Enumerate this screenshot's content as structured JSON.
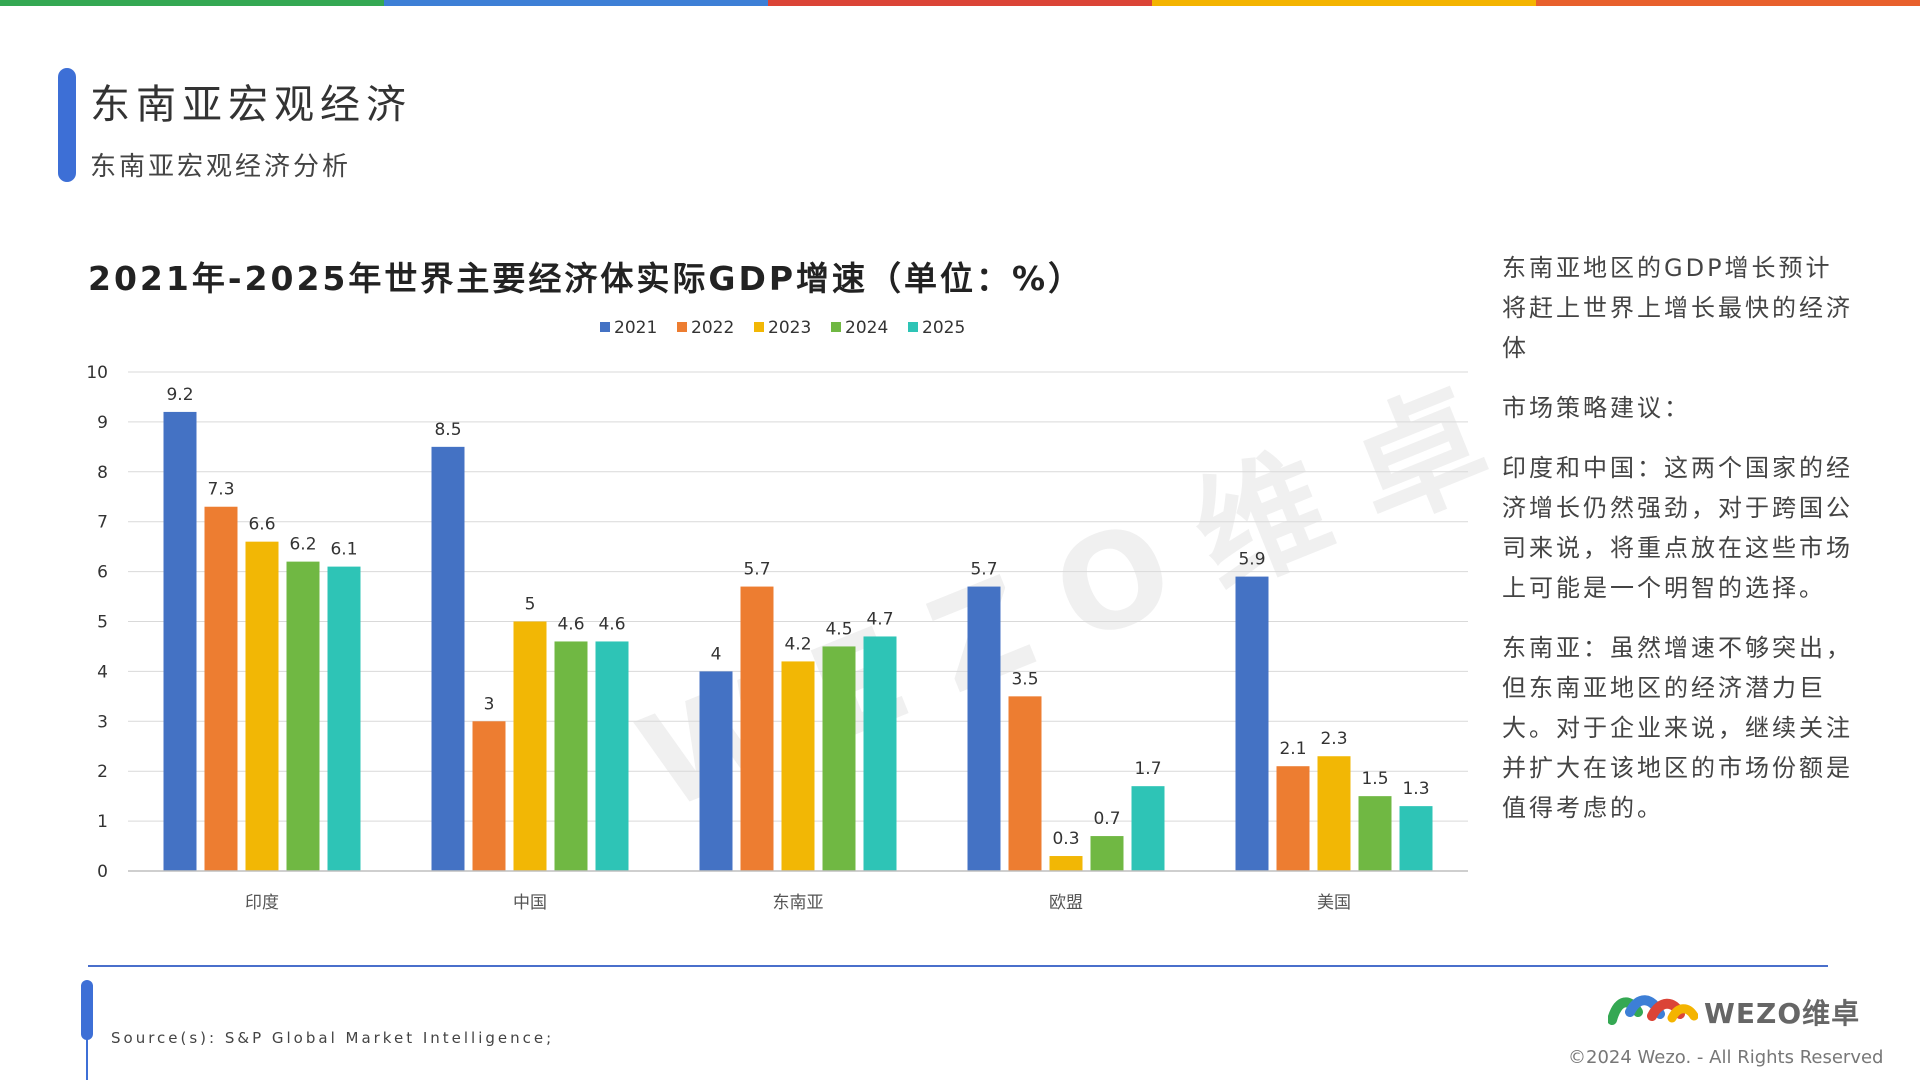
{
  "header": {
    "title": "东南亚宏观经济",
    "subtitle": "东南亚宏观经济分析",
    "colors": [
      "#34a853",
      "#3d7fd6",
      "#db4437",
      "#f4b400",
      "#e8602c"
    ]
  },
  "chart_data": {
    "type": "bar",
    "title": "2021年-2025年世界主要经济体实际GDP增速（单位：%）",
    "categories": [
      "印度",
      "中国",
      "东南亚",
      "欧盟",
      "美国"
    ],
    "series": [
      {
        "name": "2021",
        "color": "#4472c4",
        "values": [
          9.2,
          8.5,
          4,
          5.7,
          5.9
        ]
      },
      {
        "name": "2022",
        "color": "#ed7d31",
        "values": [
          7.3,
          3,
          5.7,
          3.5,
          2.1
        ]
      },
      {
        "name": "2023",
        "color": "#f2b705",
        "values": [
          6.6,
          5,
          4.2,
          0.3,
          2.3
        ]
      },
      {
        "name": "2024",
        "color": "#70b843",
        "values": [
          6.2,
          4.6,
          4.5,
          0.7,
          1.5
        ]
      },
      {
        "name": "2025",
        "color": "#2ec4b6",
        "values": [
          6.1,
          4.6,
          4.7,
          1.7,
          1.3
        ]
      }
    ],
    "ylim": [
      0,
      10
    ],
    "yticks": [
      0,
      1,
      2,
      3,
      4,
      5,
      6,
      7,
      8,
      9,
      10
    ],
    "grid": true,
    "legend": "top-center"
  },
  "sidebar": {
    "p1": "东南亚地区的GDP增长预计将赶上世界上增长最快的经济体",
    "p2": "市场策略建议：",
    "p3": "印度和中国：这两个国家的经济增长仍然强劲，对于跨国公司来说，将重点放在这些市场上可能是一个明智的选择。",
    "p4": "东南亚：虽然增速不够突出，但东南亚地区的经济潜力巨大。对于企业来说，继续关注并扩大在该地区的市场份额是值得考虑的。"
  },
  "watermark": "WEZO维卓",
  "footer": {
    "source": "Source(s): S&P Global Market Intelligence;",
    "logo_text": "WEZO维卓",
    "copyright": "©2024 Wezo. - All Rights Reserved"
  }
}
